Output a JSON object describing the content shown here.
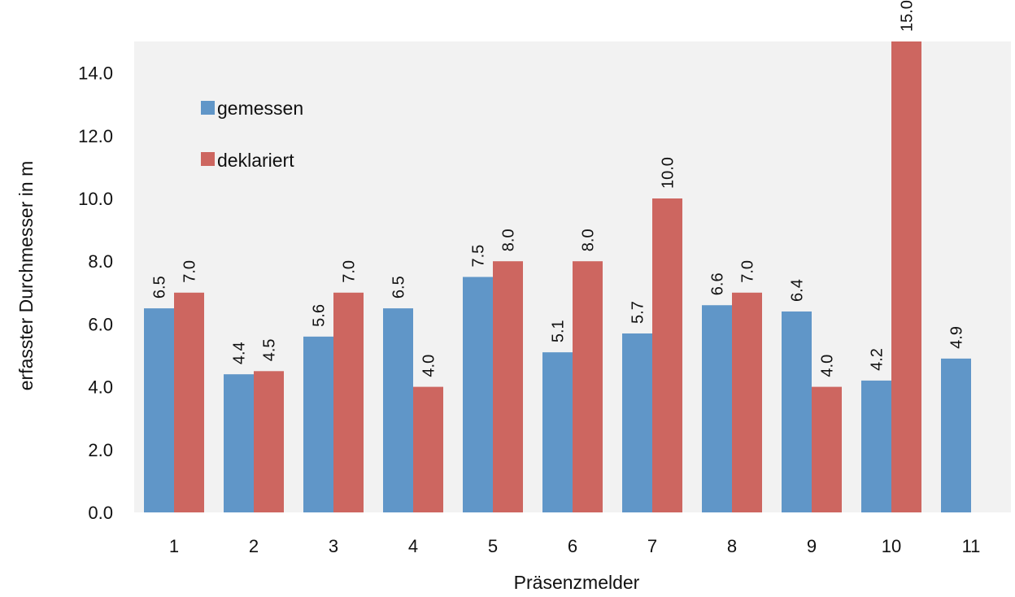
{
  "chart_data": {
    "type": "bar",
    "xlabel": "Präsenzmelder",
    "ylabel": "erfasster Durchmesser in m",
    "ylim": [
      0,
      15
    ],
    "yticks": [
      "0.0",
      "2.0",
      "4.0",
      "6.0",
      "8.0",
      "10.0",
      "12.0",
      "14.0"
    ],
    "categories": [
      "1",
      "2",
      "3",
      "4",
      "5",
      "6",
      "7",
      "8",
      "9",
      "10",
      "11"
    ],
    "series": [
      {
        "name": "gemessen",
        "color": "#6096c8",
        "values": [
          6.5,
          4.4,
          5.6,
          6.5,
          7.5,
          5.1,
          5.7,
          6.6,
          6.4,
          4.2,
          4.9
        ],
        "labels": [
          "6.5",
          "4.4",
          "5.6",
          "6.5",
          "7.5",
          "5.1",
          "5.7",
          "6.6",
          "6.4",
          "4.2",
          "4.9"
        ]
      },
      {
        "name": "deklariert",
        "color": "#cd6660",
        "values": [
          7.0,
          4.5,
          7.0,
          4.0,
          8.0,
          8.0,
          10.0,
          7.0,
          4.0,
          15.0,
          null
        ],
        "labels": [
          "7.0",
          "4.5",
          "7.0",
          "4.0",
          "8.0",
          "8.0",
          "10.0",
          "7.0",
          "4.0",
          "15.0",
          null
        ]
      }
    ],
    "legend": "top-left",
    "grid": false,
    "plot_background": "#f2f2f2"
  }
}
